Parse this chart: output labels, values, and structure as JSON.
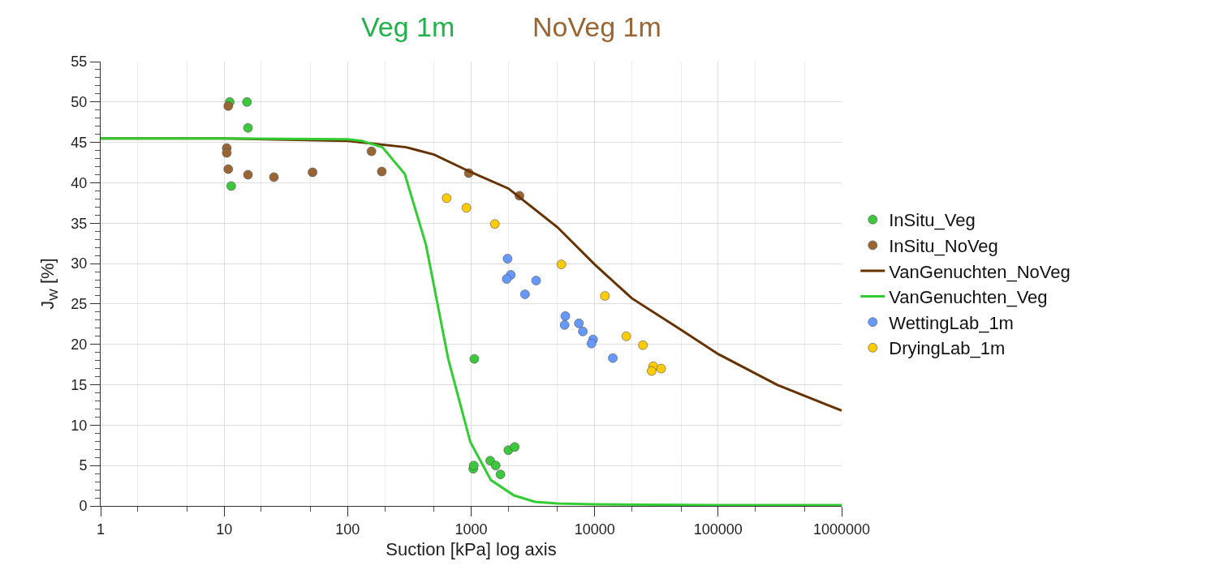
{
  "chart_data": {
    "type": "scatter",
    "title": "Veg 1m",
    "subtitle": "NoVeg 1m",
    "xlabel": "Suction [kPa] log axis",
    "ylabel": "J$_{W}$ [%]",
    "log": "x",
    "grid": true,
    "legend": "right",
    "marker": "circle",
    "xlim": [
      1,
      1000000
    ],
    "xticks": [
      1,
      10,
      100,
      1000,
      10000,
      100000,
      1000000
    ],
    "ylim": [
      0,
      55
    ],
    "yticks": [
      0,
      5,
      10,
      15,
      20,
      25,
      30,
      35,
      40,
      45,
      50,
      55
    ],
    "series": [
      {
        "name": "InSitu_Veg",
        "color": "#3cc73c",
        "x": [
          11.1,
          15.3,
          15.6,
          11.4,
          1061,
          1040,
          1050,
          1426,
          1581,
          1727,
          2000,
          2253
        ],
        "values": [
          50.0,
          50.0,
          46.8,
          39.6,
          18.2,
          4.6,
          5.0,
          5.6,
          5.0,
          3.9,
          6.9,
          7.3
        ]
      },
      {
        "name": "InSitu_NoVeg",
        "color": "#996633",
        "x": [
          10.8,
          10.5,
          10.5,
          10.8,
          15.6,
          25.3,
          52,
          156,
          189,
          957,
          2460
        ],
        "values": [
          49.5,
          44.3,
          43.7,
          41.7,
          41.0,
          40.7,
          41.3,
          43.9,
          41.4,
          41.2,
          38.4
        ]
      },
      {
        "name": "VanGenuchten_NoVeg",
        "type": "line",
        "marker": "none",
        "color": "#663300",
        "x": [
          1,
          10,
          100,
          298,
          500,
          1000,
          2000,
          5000,
          10000,
          20000,
          50000,
          100000,
          300000,
          1000000
        ],
        "values": [
          45.5,
          45.5,
          45.2,
          44.4,
          43.5,
          41.3,
          39.3,
          34.5,
          29.9,
          25.7,
          21.8,
          18.8,
          15.0,
          11.8
        ]
      },
      {
        "name": "VanGenuchten_Veg",
        "type": "line",
        "marker": "none",
        "color": "#33cc33",
        "x": [
          1,
          10,
          100,
          130,
          191,
          290,
          431,
          652,
          985,
          1445,
          2220,
          3300,
          5000,
          10000,
          100000,
          1000000
        ],
        "values": [
          45.5,
          45.5,
          45.4,
          45.2,
          44.4,
          41.1,
          32.3,
          18.2,
          7.9,
          3.2,
          1.3,
          0.5,
          0.3,
          0.2,
          0.1,
          0.1
        ]
      },
      {
        "name": "WettingLab_1m",
        "color": "#6699ff",
        "x": [
          1972,
          2093,
          1942,
          3355,
          2729,
          5790,
          5710,
          7450,
          8020,
          9710,
          9420,
          14040
        ],
        "values": [
          30.6,
          28.6,
          28.1,
          27.9,
          26.2,
          23.5,
          22.4,
          22.6,
          21.6,
          20.6,
          20.1,
          18.3
        ]
      },
      {
        "name": "DryingLab_1m",
        "color": "#ffcc00",
        "x": [
          633,
          916,
          1557,
          5380,
          12120,
          18040,
          24600,
          29800,
          28950,
          34550
        ],
        "values": [
          38.1,
          36.9,
          34.9,
          29.9,
          26.0,
          21.0,
          19.9,
          17.3,
          16.7,
          17.0
        ]
      }
    ]
  }
}
